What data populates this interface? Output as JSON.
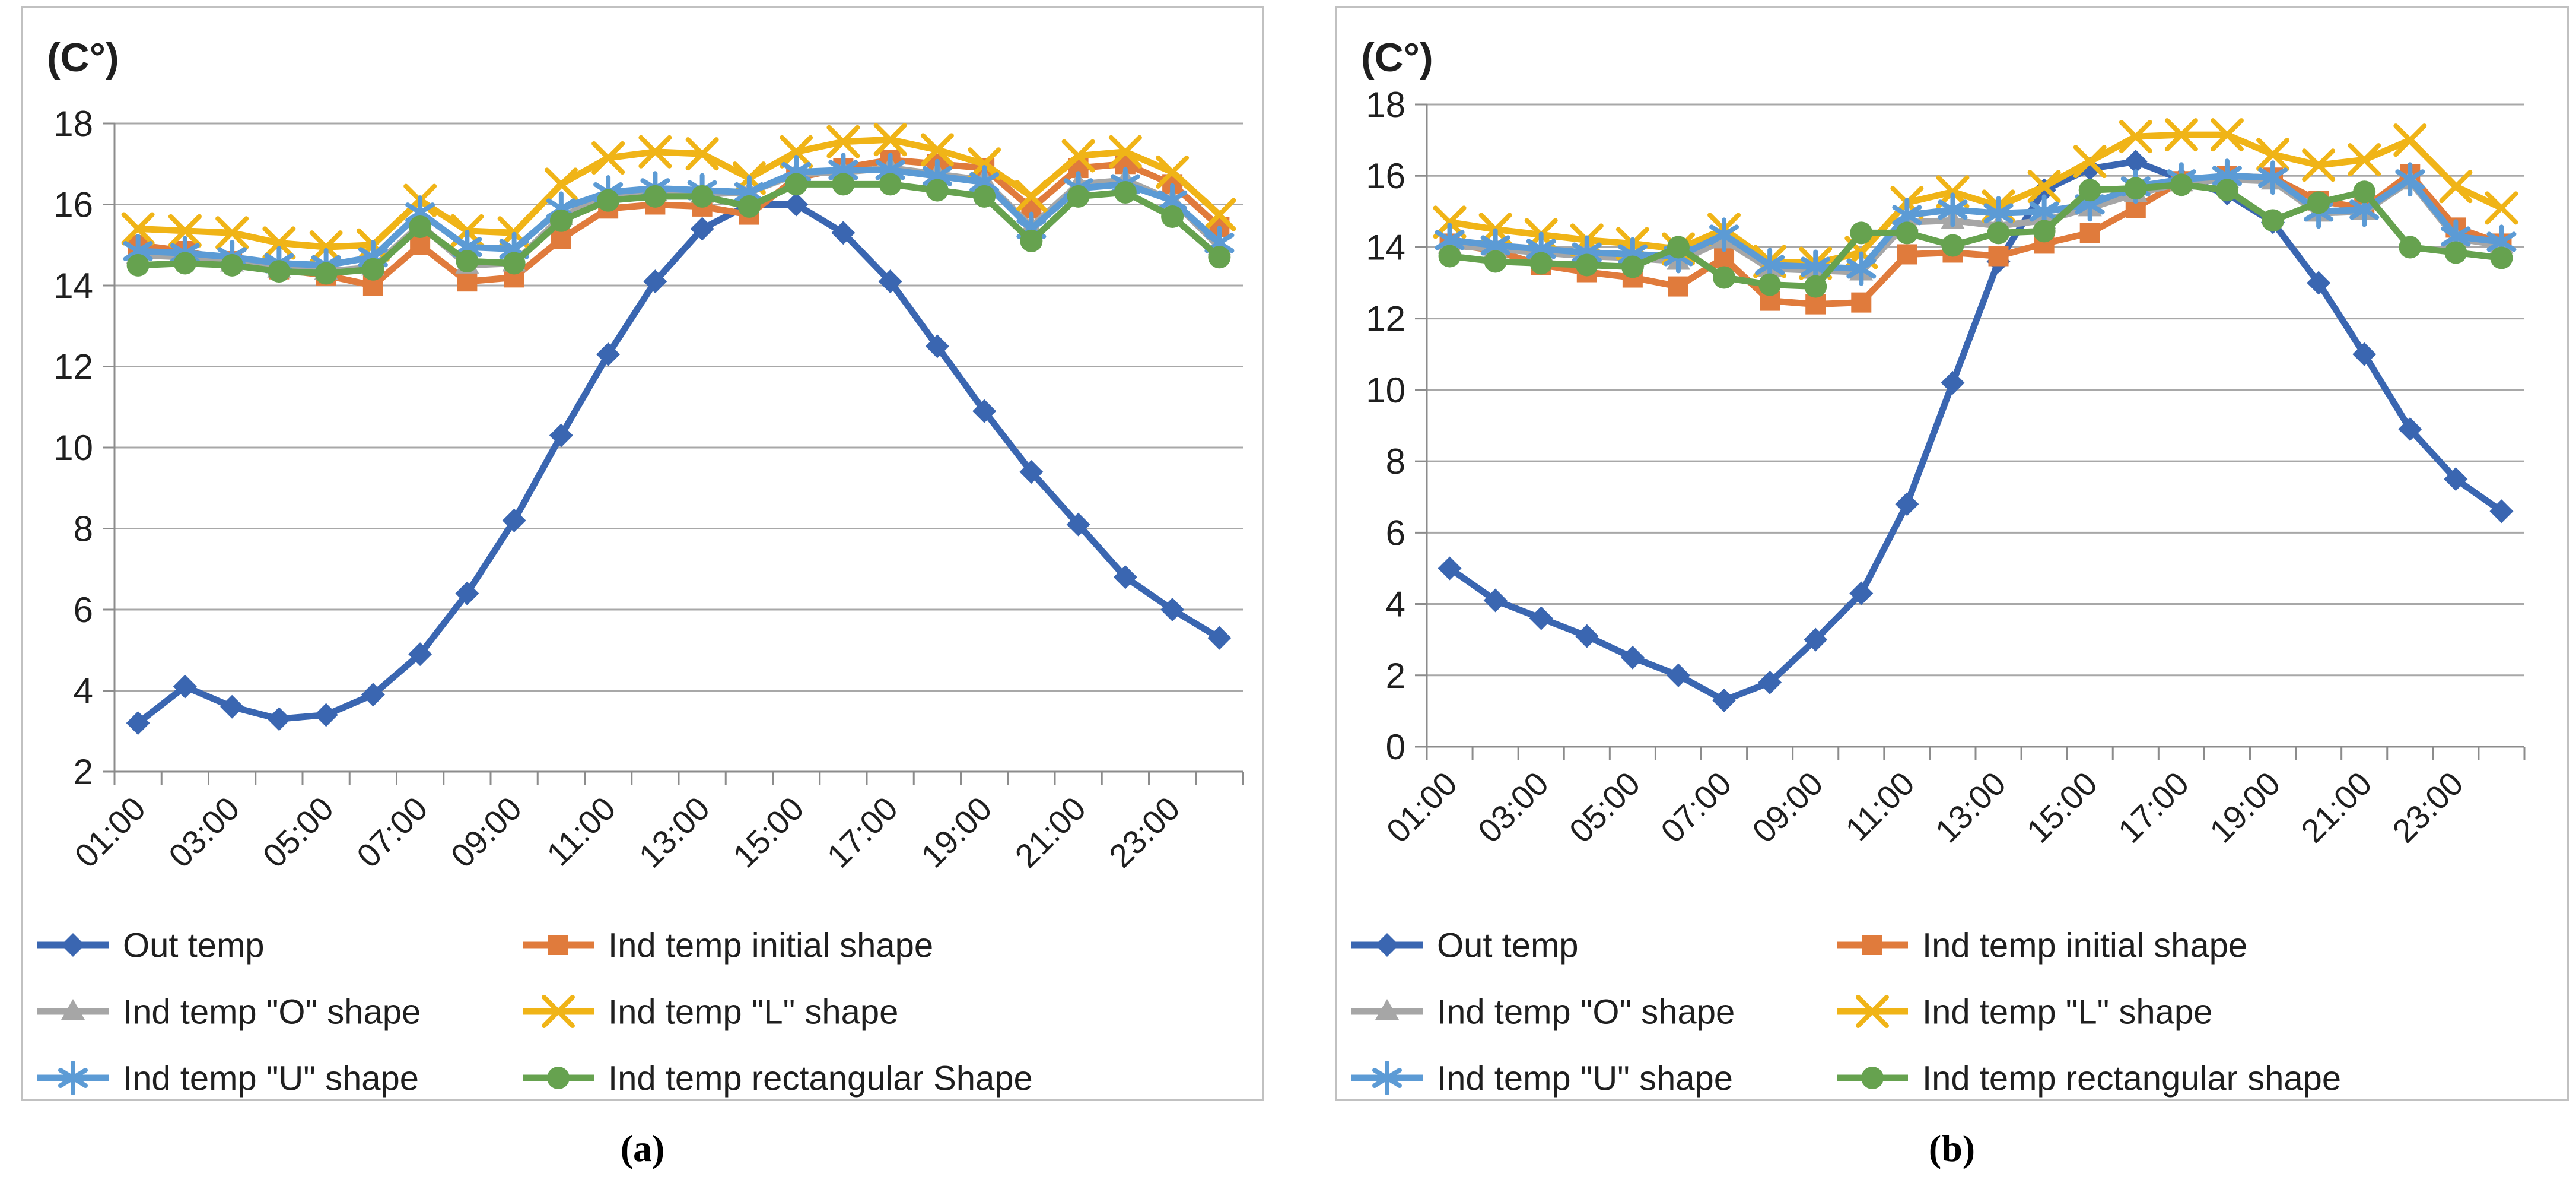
{
  "figure": {
    "captions": [
      "(a)",
      "(b)"
    ],
    "colors": {
      "gridline": "#A8A8A8",
      "axis": "#8C8C8C",
      "panel_border": "#C1C1C1",
      "text": "#1F1F1F",
      "out_temp_blue": "#3A66B1",
      "initial_orange": "#E07B3C",
      "o_gray": "#A6A6A6",
      "l_yellow": "#F0B417",
      "u_lightblue": "#5C9BD5",
      "rect_green": "#66A24F"
    }
  },
  "chart_data": [
    {
      "id": "a",
      "type": "line",
      "unit_label": "(C°)",
      "caption": "(a)",
      "grid": true,
      "legend_position": "bottom",
      "ylim": [
        2,
        18
      ],
      "ytick_step": 2,
      "y_tick_labels": [
        "2",
        "4",
        "6",
        "8",
        "10",
        "12",
        "14",
        "16",
        "18"
      ],
      "x_tick_labels": [
        "01:00",
        "03:00",
        "05:00",
        "07:00",
        "09:00",
        "11:00",
        "13:00",
        "15:00",
        "17:00",
        "19:00",
        "21:00",
        "23:00"
      ],
      "hours": [
        "01:00",
        "02:00",
        "03:00",
        "04:00",
        "05:00",
        "06:00",
        "07:00",
        "08:00",
        "09:00",
        "10:00",
        "11:00",
        "12:00",
        "13:00",
        "14:00",
        "15:00",
        "16:00",
        "17:00",
        "18:00",
        "19:00",
        "20:00",
        "21:00",
        "22:00",
        "23:00",
        "24:00"
      ],
      "legend_layout": [
        [
          0,
          1
        ],
        [
          2,
          3
        ],
        [
          4,
          5
        ]
      ],
      "series": [
        {
          "key": "out-temp",
          "name": "Out temp",
          "marker": "diamond",
          "color": "#3A66B1",
          "values": [
            3.2,
            4.1,
            3.6,
            3.3,
            3.4,
            3.9,
            4.9,
            6.4,
            8.2,
            10.3,
            12.3,
            14.1,
            15.4,
            16,
            16,
            15.3,
            14.1,
            12.5,
            10.9,
            9.4,
            8.1,
            6.8,
            6,
            5.3
          ]
        },
        {
          "key": "ind-temp-initial-shape",
          "name": "Ind temp initial shape",
          "marker": "square",
          "color": "#E07B3C",
          "values": [
            15,
            14.85,
            14.6,
            14.4,
            14.25,
            14,
            15,
            14.1,
            14.2,
            15.15,
            15.9,
            16,
            15.95,
            15.75,
            16.65,
            16.9,
            17.1,
            17,
            16.9,
            15.9,
            16.9,
            17,
            16.5,
            15.45
          ]
        },
        {
          "key": "ind-temp-o-shape",
          "name": "Ind temp \"O\" shape",
          "marker": "triangle",
          "color": "#A6A6A6",
          "values": [
            14.75,
            14.7,
            14.55,
            14.4,
            14.35,
            14.45,
            15.5,
            14.5,
            14.55,
            15.7,
            16.2,
            16.3,
            16.25,
            16.3,
            16.75,
            16.8,
            16.9,
            16.75,
            16.6,
            15.45,
            16.5,
            16.6,
            16.1,
            14.95
          ]
        },
        {
          "key": "ind-temp-l-shape",
          "name": "Ind temp \"L\" shape",
          "marker": "x",
          "color": "#F0B417",
          "values": [
            15.4,
            15.35,
            15.3,
            15.05,
            14.95,
            15,
            16.1,
            15.35,
            15.3,
            16.5,
            17.15,
            17.3,
            17.25,
            16.65,
            17.3,
            17.55,
            17.6,
            17.35,
            17,
            16.2,
            17.2,
            17.3,
            16.8,
            15.75
          ]
        },
        {
          "key": "ind-temp-u-shape",
          "name": "Ind temp \"U\" shape",
          "marker": "asterisk",
          "color": "#5C9BD5",
          "values": [
            14.85,
            14.8,
            14.7,
            14.55,
            14.5,
            14.7,
            15.8,
            14.95,
            14.9,
            15.9,
            16.3,
            16.4,
            16.35,
            16.3,
            16.8,
            16.85,
            16.85,
            16.7,
            16.55,
            15.4,
            16.4,
            16.5,
            16.1,
            15.05
          ]
        },
        {
          "key": "ind-temp-rectangular-shape",
          "name": "Ind temp rectangular Shape",
          "marker": "circle",
          "color": "#66A24F",
          "values": [
            14.5,
            14.55,
            14.5,
            14.35,
            14.3,
            14.4,
            15.45,
            14.6,
            14.55,
            15.6,
            16.1,
            16.2,
            16.2,
            15.95,
            16.5,
            16.5,
            16.5,
            16.35,
            16.2,
            15.1,
            16.2,
            16.3,
            15.7,
            14.7
          ]
        }
      ]
    },
    {
      "id": "b",
      "type": "line",
      "unit_label": "(C°)",
      "caption": "(b)",
      "grid": true,
      "legend_position": "bottom",
      "ylim": [
        0,
        18
      ],
      "ytick_step": 2,
      "y_tick_labels": [
        "0",
        "2",
        "4",
        "6",
        "8",
        "10",
        "12",
        "14",
        "16",
        "18"
      ],
      "x_tick_labels": [
        "01:00",
        "03:00",
        "05:00",
        "07:00",
        "09:00",
        "11:00",
        "13:00",
        "15:00",
        "17:00",
        "19:00",
        "21:00",
        "23:00"
      ],
      "hours": [
        "01:00",
        "02:00",
        "03:00",
        "04:00",
        "05:00",
        "06:00",
        "07:00",
        "08:00",
        "09:00",
        "10:00",
        "11:00",
        "12:00",
        "13:00",
        "14:00",
        "15:00",
        "16:00",
        "17:00",
        "18:00",
        "19:00",
        "20:00",
        "21:00",
        "22:00",
        "23:00",
        "24:00"
      ],
      "legend_layout": [
        [
          0,
          1
        ],
        [
          2,
          3
        ],
        [
          4,
          5
        ]
      ],
      "series": [
        {
          "key": "out-temp",
          "name": "Out temp",
          "marker": "diamond",
          "color": "#3A66B1",
          "values": [
            5,
            4.1,
            3.6,
            3.1,
            2.5,
            2,
            1.3,
            1.8,
            3,
            4.3,
            6.8,
            10.2,
            13.6,
            15.6,
            16.2,
            16.4,
            15.9,
            15.5,
            14.7,
            13,
            11,
            8.9,
            7.5,
            6.6
          ]
        },
        {
          "key": "ind-temp-initial-shape",
          "name": "Ind temp initial shape",
          "marker": "square",
          "color": "#E07B3C",
          "values": [
            14.1,
            13.9,
            13.5,
            13.3,
            13.15,
            12.9,
            13.7,
            12.5,
            12.4,
            12.45,
            13.8,
            13.85,
            13.75,
            14.1,
            14.4,
            15.1,
            15.85,
            16,
            15.95,
            15.3,
            15.1,
            16.05,
            14.55,
            14.1
          ]
        },
        {
          "key": "ind-temp-o-shape",
          "name": "Ind temp \"O\" shape",
          "marker": "triangle",
          "color": "#A6A6A6",
          "values": [
            14.05,
            13.95,
            13.85,
            13.75,
            13.7,
            13.6,
            14.2,
            13.4,
            13.35,
            13.3,
            14.7,
            14.75,
            14.6,
            14.75,
            15.1,
            15.5,
            15.8,
            15.9,
            15.85,
            14.95,
            15,
            15.85,
            14.25,
            14.05
          ]
        },
        {
          "key": "ind-temp-l-shape",
          "name": "Ind temp \"L\" shape",
          "marker": "x",
          "color": "#F0B417",
          "values": [
            14.7,
            14.5,
            14.35,
            14.2,
            14.1,
            13.95,
            14.5,
            13.6,
            13.55,
            13.85,
            15.25,
            15.55,
            15.15,
            15.7,
            16.4,
            17.1,
            17.15,
            17.15,
            16.6,
            16.3,
            16.45,
            17,
            15.7,
            15.1
          ]
        },
        {
          "key": "ind-temp-u-shape",
          "name": "Ind temp \"U\" shape",
          "marker": "asterisk",
          "color": "#5C9BD5",
          "values": [
            14.2,
            14.05,
            13.95,
            13.85,
            13.8,
            13.75,
            14.35,
            13.5,
            13.45,
            13.4,
            14.9,
            15.05,
            14.95,
            15,
            15.2,
            15.7,
            15.9,
            16,
            15.95,
            15,
            15.05,
            15.9,
            14.3,
            14.15
          ]
        },
        {
          "key": "ind-temp-rectangular-shape",
          "name": "Ind temp rectangular shape",
          "marker": "circle",
          "color": "#66A24F",
          "values": [
            13.75,
            13.6,
            13.55,
            13.5,
            13.45,
            14,
            13.15,
            12.95,
            12.9,
            14.4,
            14.4,
            14.05,
            14.4,
            14.45,
            15.6,
            15.65,
            15.75,
            15.6,
            14.75,
            15.25,
            15.55,
            14,
            13.85,
            13.7
          ]
        }
      ]
    }
  ]
}
